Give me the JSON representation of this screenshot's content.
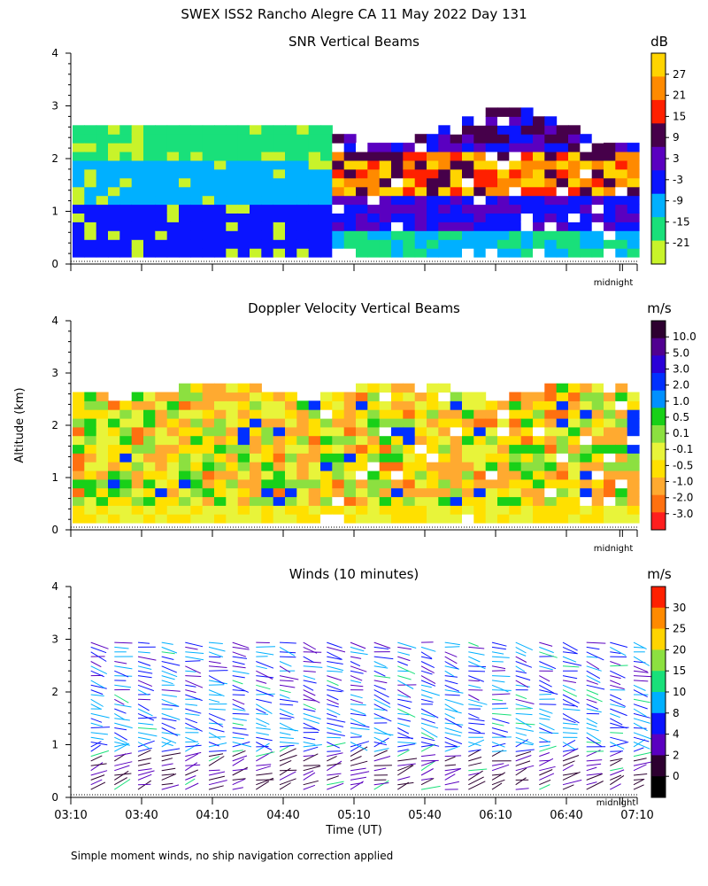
{
  "figure": {
    "title": "SWEX ISS2 Rancho Alegre CA  11 May 2022 Day 131",
    "shared_ylabel": "Altitude (km)",
    "footnote": "Simple moment winds, no ship navigation correction applied",
    "midnight_label": "midnight"
  },
  "chart_data": [
    {
      "type": "heatmap",
      "title": "SNR Vertical Beams",
      "colorbar_unit": "dB",
      "colorbar_labels": [
        "27",
        "21",
        "15",
        "9",
        "3",
        "-3",
        "-9",
        "-15",
        "-21"
      ],
      "colorbar_colors": [
        "#ffd400",
        "#ff8a00",
        "#ff2000",
        "#46004a",
        "#5a00c0",
        "#0a14ff",
        "#00b0ff",
        "#19e07a",
        "#c8f32a"
      ],
      "ylim": [
        0,
        4
      ],
      "yticks": [
        "0",
        "1",
        "2",
        "3",
        "4"
      ],
      "xlim": [
        "03:10",
        "07:10"
      ],
      "grid": false
    },
    {
      "type": "heatmap",
      "title": "Doppler Velocity Vertical Beams",
      "colorbar_unit": "m/s",
      "colorbar_labels": [
        "10.0",
        "5.0",
        "3.0",
        "2.0",
        "1.0",
        "0.5",
        "0.1",
        "-0.1",
        "-0.5",
        "-1.0",
        "-2.0",
        "-3.0"
      ],
      "colorbar_colors": [
        "#2d0030",
        "#500090",
        "#2a00d8",
        "#0030ff",
        "#0090ff",
        "#18d018",
        "#8ce040",
        "#e8f43a",
        "#ffe000",
        "#ffaa30",
        "#ff7010",
        "#ff1e1e"
      ],
      "ylim": [
        0,
        4
      ],
      "yticks": [
        "0",
        "1",
        "2",
        "3",
        "4"
      ],
      "xlim": [
        "03:10",
        "07:10"
      ],
      "grid": false
    },
    {
      "type": "scatter",
      "title": "Winds (10 minutes)",
      "colorbar_unit": "m/s",
      "colorbar_labels": [
        "30",
        "25",
        "20",
        "15",
        "10",
        "8",
        "4",
        "2",
        "0"
      ],
      "colorbar_colors": [
        "#ff2000",
        "#ff8a00",
        "#ffd400",
        "#8ce040",
        "#19e07a",
        "#00b0ff",
        "#0a14ff",
        "#5a00c0",
        "#2d0030",
        "#000000"
      ],
      "xlabel": "Time (UT)",
      "xticks": [
        "03:10",
        "03:40",
        "04:10",
        "04:40",
        "05:10",
        "05:40",
        "06:10",
        "06:40",
        "07:10"
      ],
      "ylim": [
        0,
        4
      ],
      "yticks": [
        "0",
        "1",
        "2",
        "3",
        "4"
      ],
      "profile_times_min": [
        10,
        20,
        30,
        40,
        50,
        60,
        70,
        80,
        90,
        100,
        110,
        120,
        130,
        140,
        150,
        160,
        170,
        180,
        190,
        200,
        210,
        220,
        230,
        240
      ],
      "profile_top_km": 3.0,
      "grid": false
    }
  ]
}
